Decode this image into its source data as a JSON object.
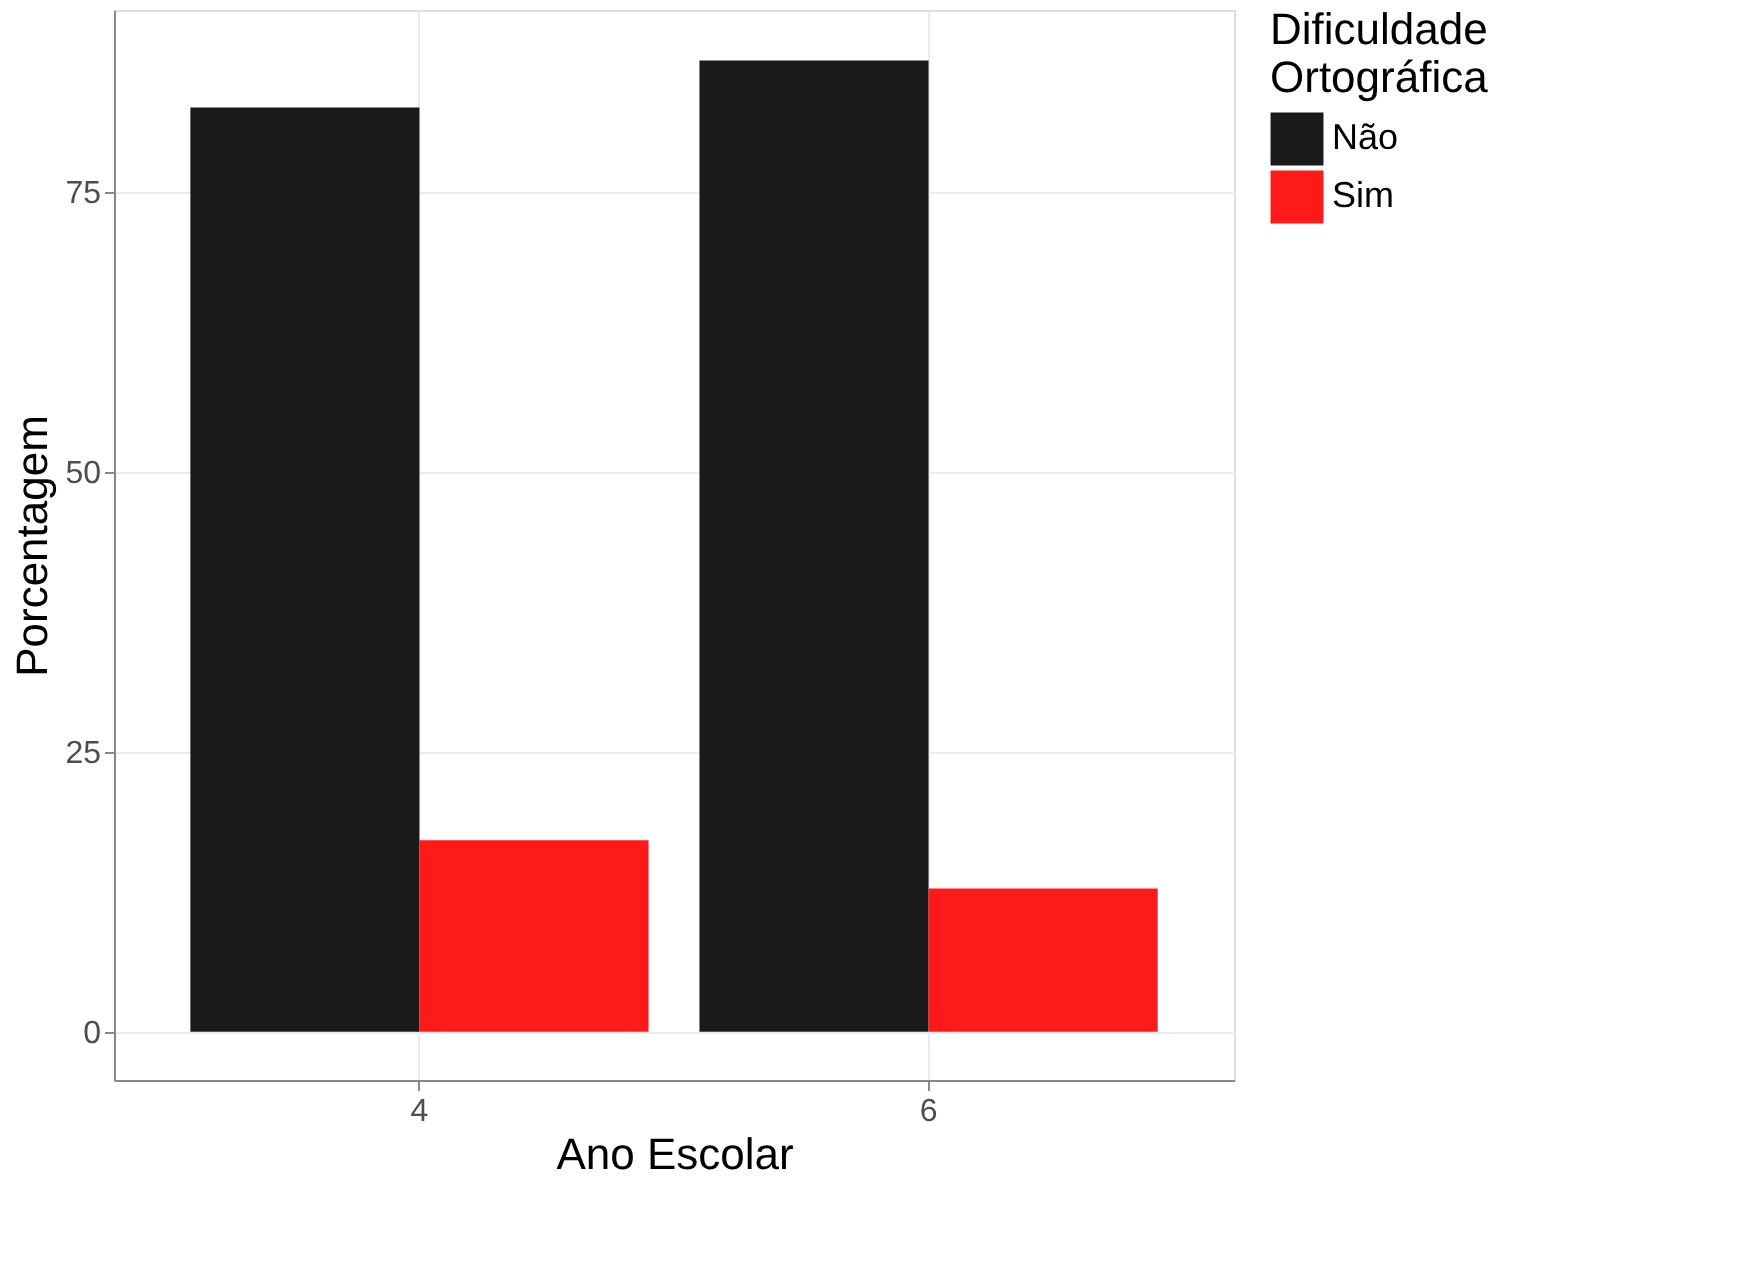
{
  "chart_data": {
    "type": "bar",
    "xlabel": "Ano Escolar",
    "ylabel": "Porcentagem",
    "legend_title": "Dificuldade\n Ortográfica",
    "categories": [
      "4",
      "6"
    ],
    "series": [
      {
        "name": "Não",
        "color": "#1a1a1a",
        "values": [
          82.5,
          86.7
        ]
      },
      {
        "name": "Sim",
        "color": "#ff1a1a",
        "values": [
          17.1,
          12.8
        ]
      }
    ],
    "ylim": [
      -4.3,
      91.2
    ],
    "yticks": [
      0,
      25,
      50,
      75
    ],
    "grid": true,
    "legend": "right"
  }
}
